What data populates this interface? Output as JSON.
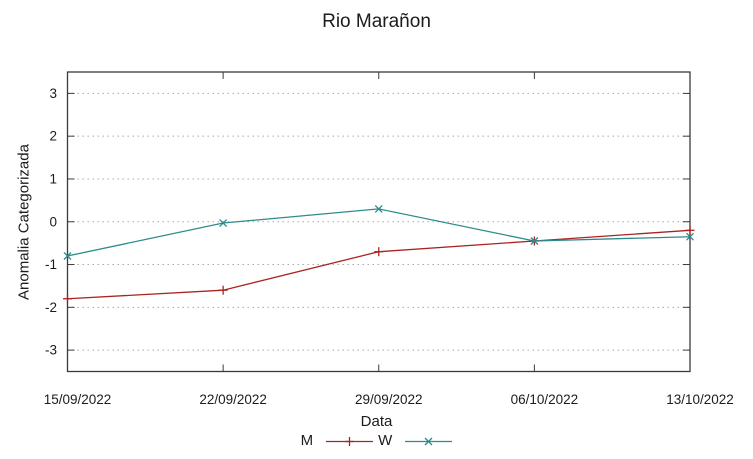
{
  "chart_data": {
    "type": "line",
    "title": "Rio Marañon",
    "xlabel": "Data",
    "ylabel": "Anomalia Categorizada",
    "categories": [
      "15/09/2022",
      "22/09/2022",
      "29/09/2022",
      "06/10/2022",
      "13/10/2022"
    ],
    "y_ticks": [
      3,
      2,
      1,
      0,
      -1,
      -2,
      -3
    ],
    "ylim": [
      -3.5,
      3.5
    ],
    "grid": true,
    "grid_style": "dotted",
    "legend_position": "bottom-center",
    "series": [
      {
        "name": "M",
        "color": "#aa2424",
        "marker": "plus",
        "values": [
          -1.8,
          -1.6,
          -0.7,
          -0.45,
          -0.2
        ]
      },
      {
        "name": "W",
        "color": "#2e8b8b",
        "marker": "cross",
        "values": [
          -0.8,
          -0.03,
          0.3,
          -0.45,
          -0.35
        ]
      }
    ],
    "colors": {
      "border": "#3a3a3a",
      "grid": "#a8a8a8",
      "text": "#1c1c1c",
      "background": "#ffffff"
    }
  }
}
